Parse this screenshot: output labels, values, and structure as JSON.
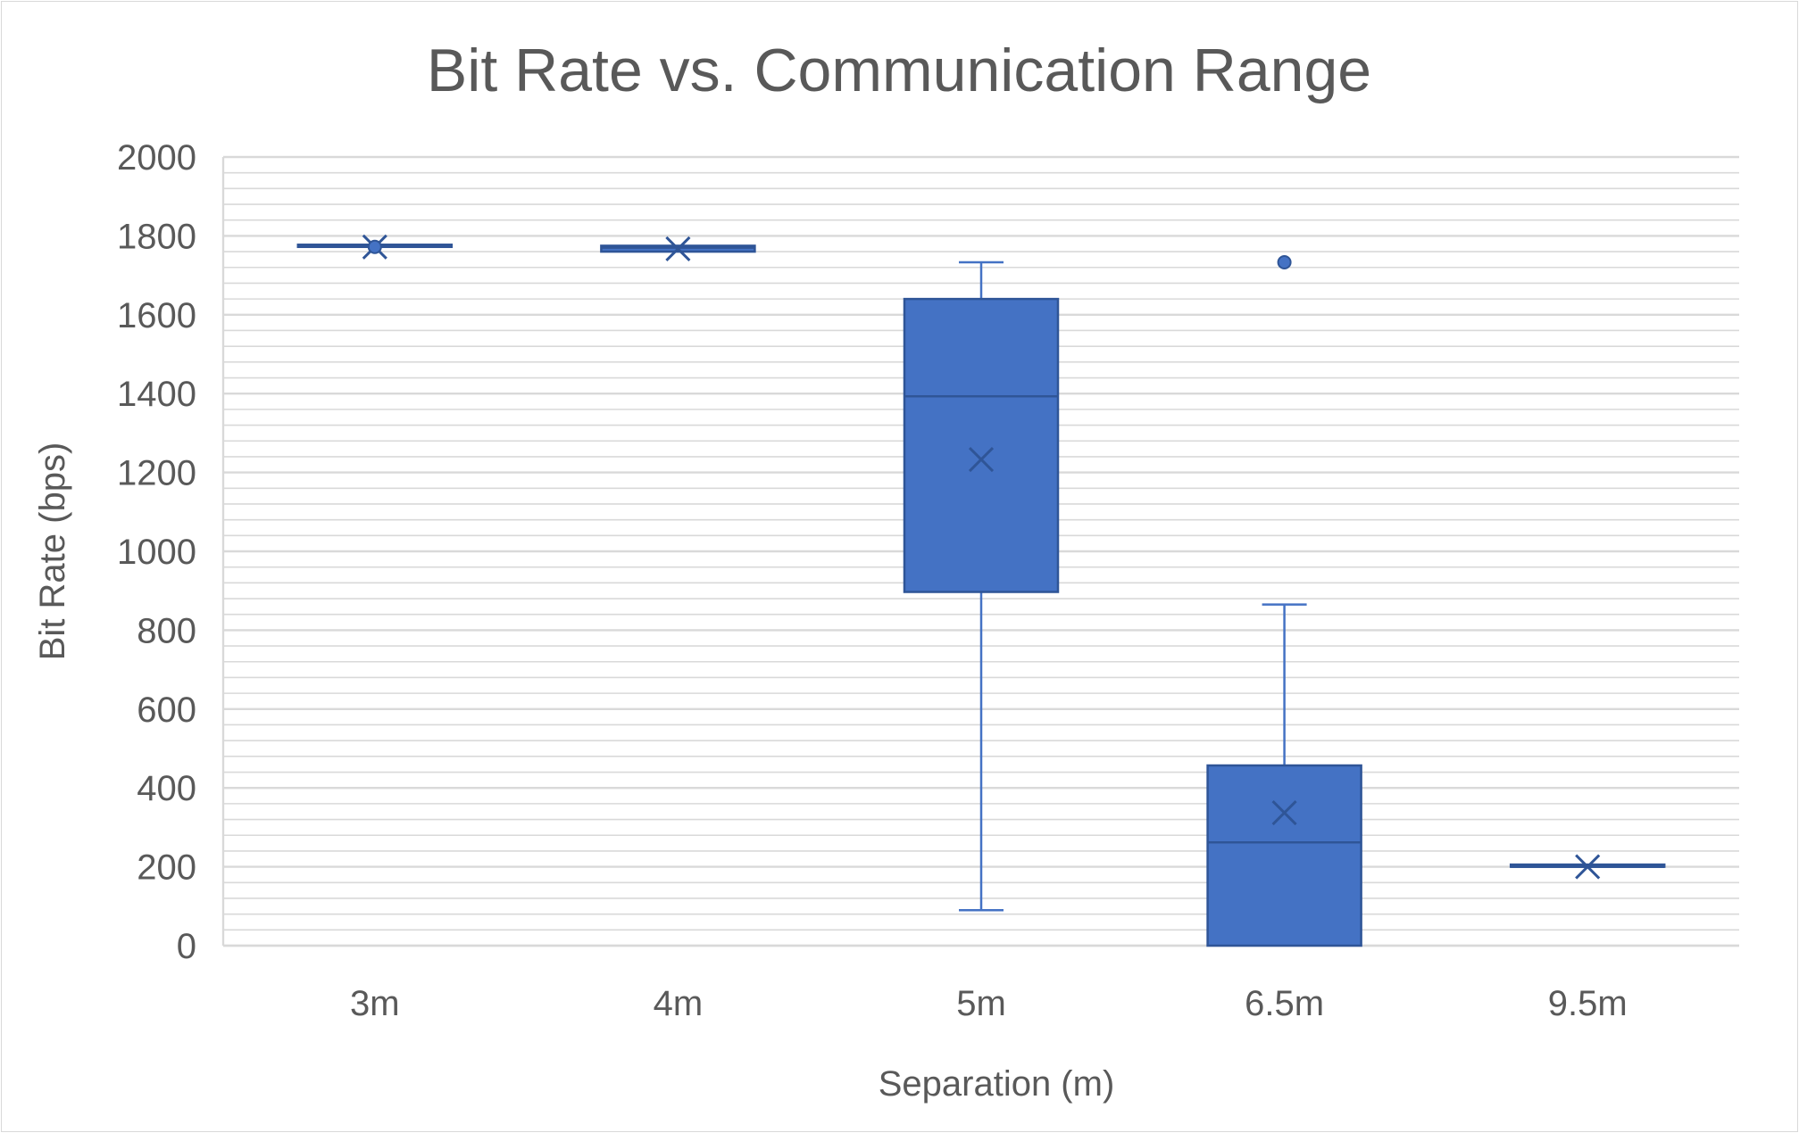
{
  "chart_data": {
    "type": "box",
    "title": "Bit Rate vs. Communication Range",
    "xlabel": "Separation (m)",
    "ylabel": "Bit Rate (bps)",
    "ylim": [
      0,
      2000
    ],
    "y_major_step": 200,
    "y_minor_step": 40,
    "grid": true,
    "legend": "none",
    "color": "#4472c4",
    "categories": [
      "3m",
      "4m",
      "5m",
      "6.5m",
      "9.5m"
    ],
    "boxes": [
      {
        "category": "3m",
        "min": 1772,
        "q1": 1772,
        "median": 1772,
        "q3": 1772,
        "max": 1772,
        "mean": 1772,
        "outliers": []
      },
      {
        "category": "4m",
        "min": 1760,
        "q1": 1760,
        "median": 1770,
        "q3": 1775,
        "max": 1775,
        "mean": 1767,
        "outliers": []
      },
      {
        "category": "5m",
        "min": 90,
        "q1": 897,
        "median": 1393,
        "q3": 1640,
        "max": 1733,
        "mean": 1233,
        "outliers": []
      },
      {
        "category": "6.5m",
        "min": 0,
        "q1": 0,
        "median": 262,
        "q3": 457,
        "max": 865,
        "mean": 337,
        "outliers": [
          1733
        ]
      },
      {
        "category": "9.5m",
        "min": 200,
        "q1": 200,
        "median": 200,
        "q3": 200,
        "max": 200,
        "mean": 200,
        "outliers": []
      }
    ]
  }
}
